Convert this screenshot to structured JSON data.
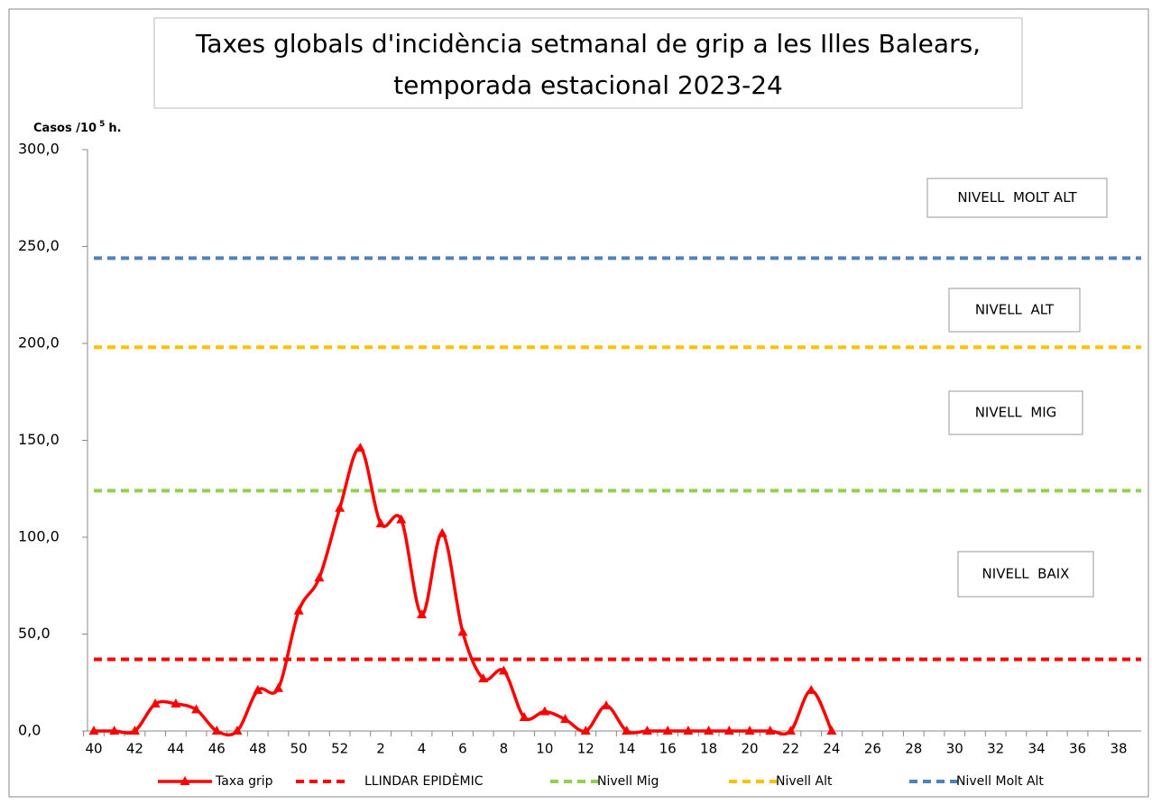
{
  "chart_data": {
    "type": "line",
    "title": [
      "Taxes globals d'incidència setmanal de grip a les Illes Balears,",
      "temporada estacional 2023-24"
    ],
    "y_label": {
      "text": "Casos /10",
      "superscript": "5",
      "suffix": "h."
    },
    "categories": [
      "40",
      null,
      "42",
      null,
      "44",
      null,
      "46",
      null,
      "48",
      null,
      "50",
      null,
      "52",
      null,
      "2",
      null,
      "4",
      null,
      "6",
      null,
      "8",
      null,
      "10",
      null,
      "12",
      null,
      "14",
      null,
      "16",
      null,
      "18",
      null,
      "20",
      null,
      "22",
      null,
      "24",
      null,
      "26",
      null,
      "28",
      null,
      "30",
      null,
      "32",
      null,
      "34",
      null,
      "36",
      null,
      "38"
    ],
    "series": [
      {
        "name": "Taxa grip",
        "color": "#ff0000",
        "values": [
          0,
          0,
          0,
          14,
          14,
          11,
          0,
          0,
          21,
          22,
          62,
          79,
          115,
          146,
          107,
          109,
          60,
          102,
          51,
          27,
          31,
          7,
          10,
          6,
          0,
          13,
          0,
          0,
          0,
          0,
          0,
          0,
          0,
          0,
          0,
          21,
          0,
          null,
          null,
          null,
          null,
          null,
          null,
          null,
          null,
          null,
          null,
          null,
          null,
          null,
          null
        ]
      }
    ],
    "reference_lines": [
      {
        "name": "LLINDAR EPIDÈMIC",
        "value": 37,
        "color": "#ff0000"
      },
      {
        "name": "Nivell Mig",
        "value": 124,
        "color": "#92d050"
      },
      {
        "name": "Nivell Alt",
        "value": 198,
        "color": "#ffc000"
      },
      {
        "name": "Nivell Molt Alt",
        "value": 244,
        "color": "#4f81bd"
      }
    ],
    "annotations": [
      "NIVELL  MOLT ALT",
      "NIVELL  ALT",
      "NIVELL  MIG",
      "NIVELL  BAIX"
    ],
    "ylim": [
      0,
      300
    ],
    "yticks": [
      {
        "value": 0,
        "label": "0,0"
      },
      {
        "value": 50,
        "label": "50,0"
      },
      {
        "value": 100,
        "label": "100,0"
      },
      {
        "value": 150,
        "label": "150,0"
      },
      {
        "value": 200,
        "label": "200,0"
      },
      {
        "value": 250,
        "label": "250,0"
      },
      {
        "value": 300,
        "label": "300,0"
      }
    ]
  }
}
